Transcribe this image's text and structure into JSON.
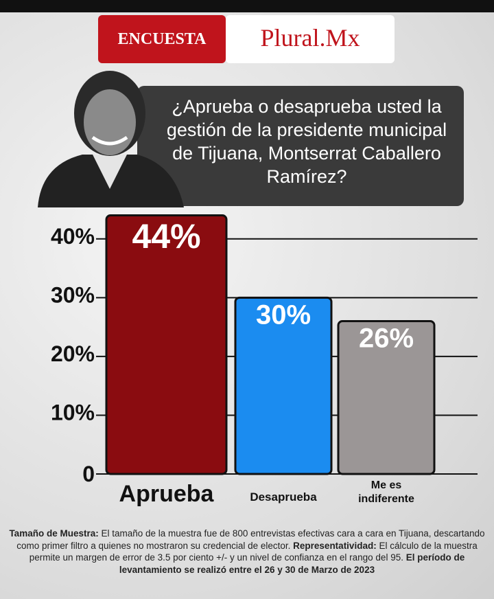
{
  "header": {
    "tag": "ENCUESTA",
    "brand": "Plural.Mx"
  },
  "question": "¿Aprueba o desaprueba usted la gestión de la presidente municipal de Tijuana, Montserrat Caballero Ramírez?",
  "chart_data": {
    "type": "bar",
    "categories": [
      "Aprueba",
      "Desaprueba",
      "Me es indiferente"
    ],
    "values": [
      44,
      30,
      26
    ],
    "value_labels": [
      "44%",
      "30%",
      "26%"
    ],
    "colors": [
      "#8a0c10",
      "#1b8cf0",
      "#9b9696"
    ],
    "ylim": [
      0,
      45
    ],
    "yticks": [
      0,
      {
        "value": 10,
        "label": "10%"
      },
      {
        "value": 20,
        "label": "20%"
      },
      {
        "value": 30,
        "label": "30%"
      },
      {
        "value": 40,
        "label": "40%"
      }
    ],
    "grid": true
  },
  "notes": [
    {
      "label": "Tamaño de Muestra:",
      "text": "El tamaño de la muestra fue de 800 entrevistas efectivas cara a cara en Tijuana, descartando como primer filtro a quienes no mostraron su credencial de elector."
    },
    {
      "label": "Representatividad:",
      "text": "El cálculo de la muestra permite un margen de error de 3.5 por ciento +/- y un nivel de confianza en el rango del 95.",
      "closing": "El período de levantamiento se realizó entre el 26 y 30 de Marzo de 2023"
    }
  ]
}
